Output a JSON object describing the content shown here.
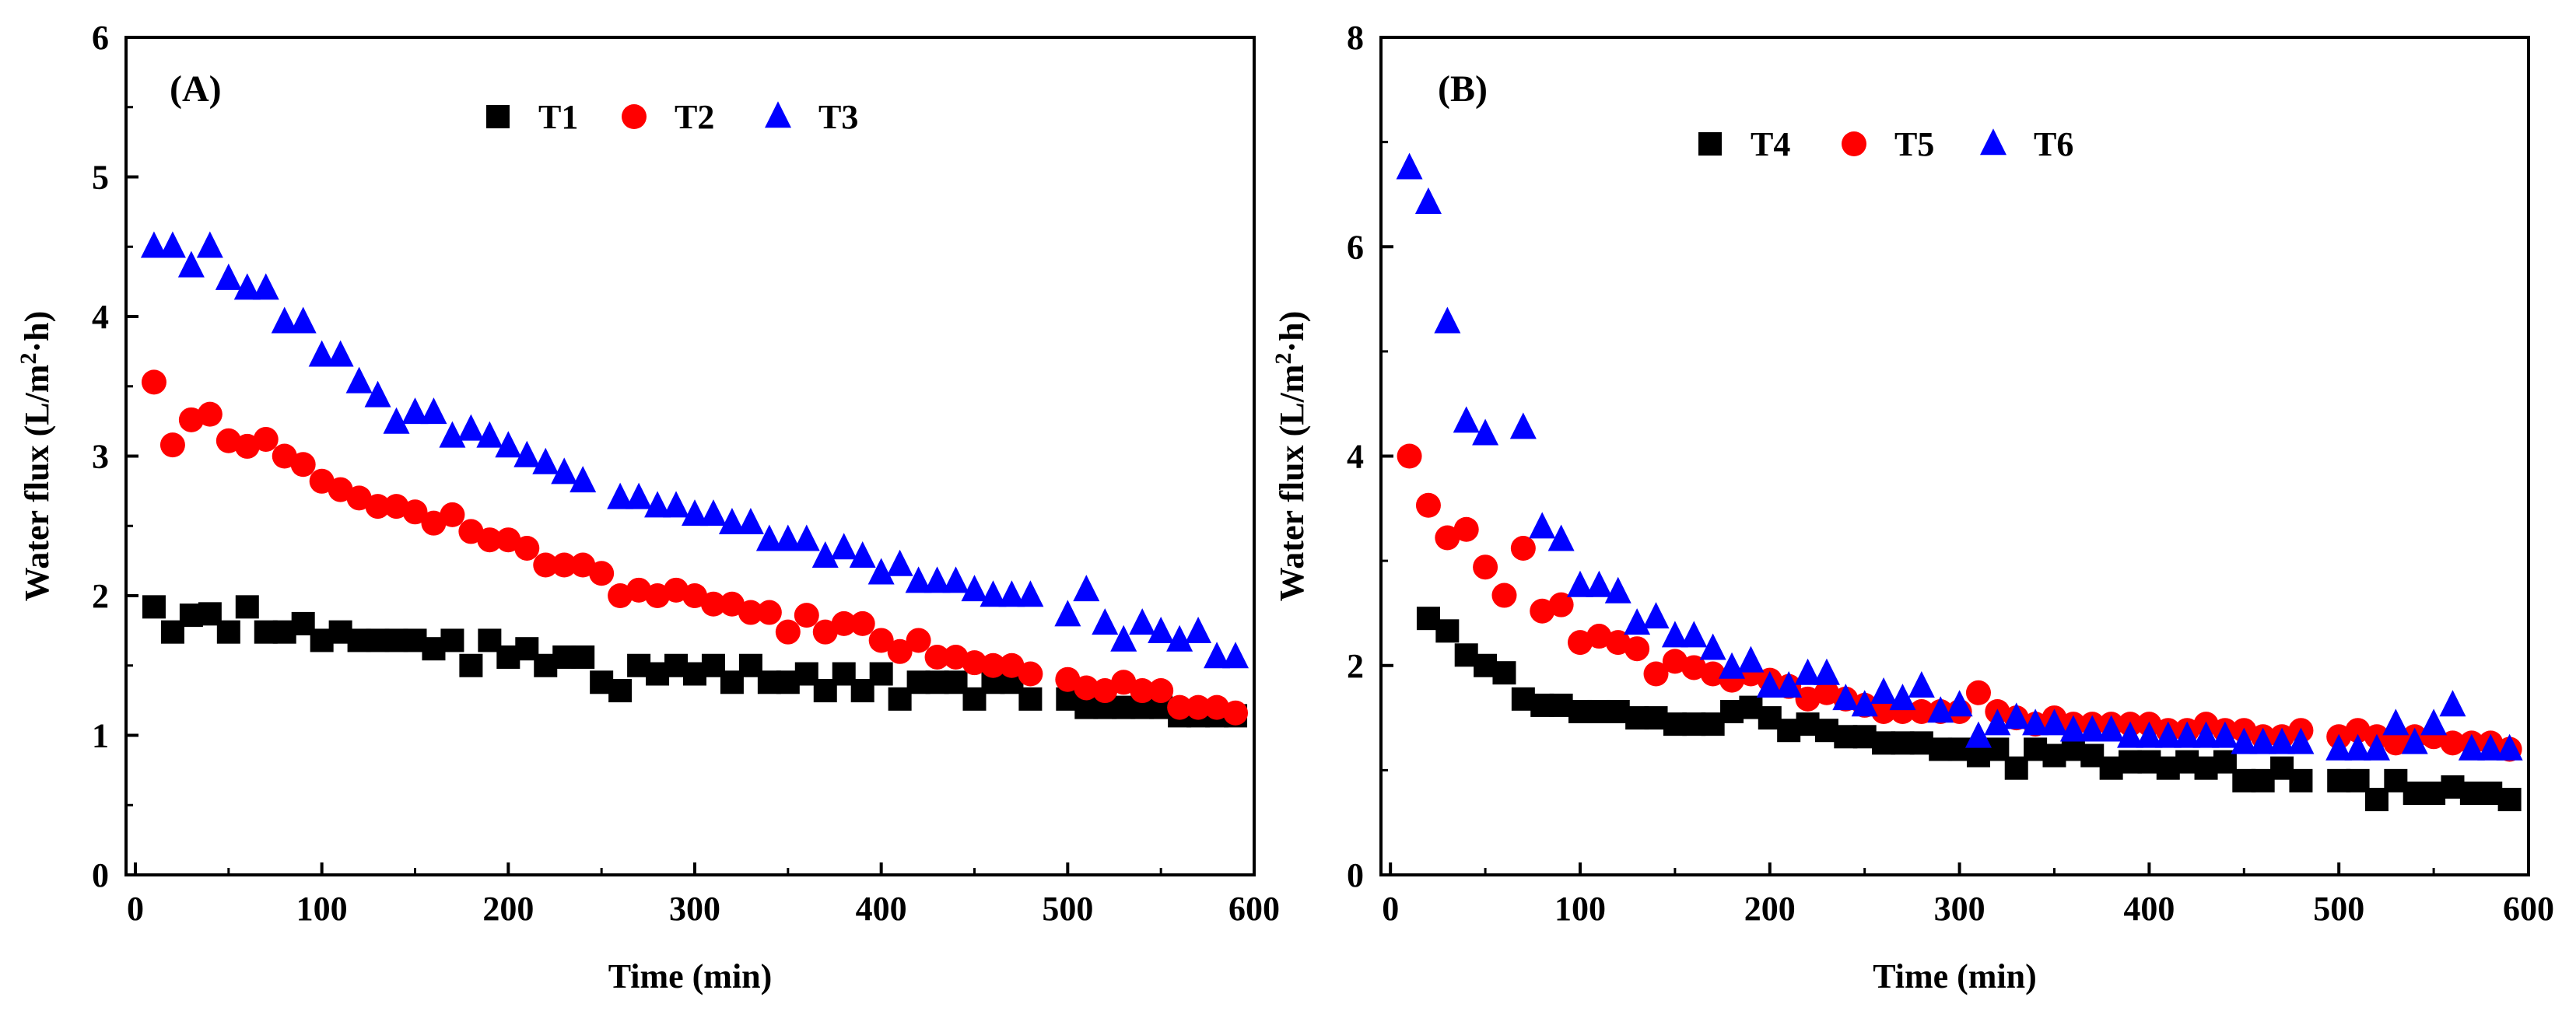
{
  "chart_data": [
    {
      "type": "scatter",
      "panel_label": "(A)",
      "xlabel": "Time (min)",
      "ylabel": "Water flux (L/m²·h)",
      "ylabel_parts": {
        "base": "Water flux (L/m",
        "sup": "2",
        "tail": "·h)"
      },
      "xlim": [
        -5,
        600
      ],
      "ylim": [
        0,
        6
      ],
      "xticks": [
        0,
        100,
        200,
        300,
        400,
        500,
        600
      ],
      "yticks": [
        0,
        1,
        2,
        3,
        4,
        5,
        6
      ],
      "legend_position": "top",
      "grid": false,
      "series": [
        {
          "name": "T1",
          "marker": "square",
          "color": "#000000",
          "x": [
            10,
            20,
            30,
            40,
            50,
            60,
            70,
            80,
            90,
            100,
            110,
            120,
            130,
            140,
            150,
            160,
            170,
            180,
            190,
            200,
            210,
            220,
            230,
            240,
            250,
            260,
            270,
            280,
            290,
            300,
            310,
            320,
            330,
            340,
            350,
            360,
            370,
            380,
            390,
            400,
            410,
            420,
            430,
            440,
            450,
            460,
            470,
            480,
            500,
            510,
            520,
            530,
            540,
            550,
            560,
            570,
            580,
            590
          ],
          "y": [
            1.92,
            1.74,
            1.86,
            1.87,
            1.74,
            1.92,
            1.74,
            1.74,
            1.8,
            1.68,
            1.74,
            1.68,
            1.68,
            1.68,
            1.68,
            1.62,
            1.68,
            1.5,
            1.68,
            1.56,
            1.62,
            1.5,
            1.56,
            1.56,
            1.38,
            1.32,
            1.5,
            1.44,
            1.5,
            1.44,
            1.5,
            1.38,
            1.5,
            1.38,
            1.38,
            1.44,
            1.32,
            1.44,
            1.32,
            1.44,
            1.26,
            1.38,
            1.38,
            1.38,
            1.26,
            1.38,
            1.38,
            1.26,
            1.26,
            1.2,
            1.2,
            1.2,
            1.2,
            1.2,
            1.14,
            1.14,
            1.14,
            1.14
          ]
        },
        {
          "name": "T2",
          "marker": "circle",
          "color": "#ff0000",
          "x": [
            10,
            20,
            30,
            40,
            50,
            60,
            70,
            80,
            90,
            100,
            110,
            120,
            130,
            140,
            150,
            160,
            170,
            180,
            190,
            200,
            210,
            220,
            230,
            240,
            250,
            260,
            270,
            280,
            290,
            300,
            310,
            320,
            330,
            340,
            350,
            360,
            370,
            380,
            390,
            400,
            410,
            420,
            430,
            440,
            450,
            460,
            470,
            480,
            500,
            510,
            520,
            530,
            540,
            550,
            560,
            570,
            580,
            590
          ],
          "y": [
            3.53,
            3.08,
            3.26,
            3.3,
            3.11,
            3.07,
            3.12,
            3.0,
            2.94,
            2.82,
            2.76,
            2.7,
            2.64,
            2.64,
            2.6,
            2.52,
            2.58,
            2.46,
            2.4,
            2.4,
            2.34,
            2.22,
            2.22,
            2.22,
            2.16,
            2.0,
            2.04,
            2.0,
            2.04,
            2.0,
            1.94,
            1.94,
            1.88,
            1.88,
            1.74,
            1.86,
            1.74,
            1.8,
            1.8,
            1.68,
            1.6,
            1.68,
            1.56,
            1.56,
            1.52,
            1.5,
            1.5,
            1.44,
            1.4,
            1.34,
            1.32,
            1.38,
            1.32,
            1.32,
            1.2,
            1.2,
            1.2,
            1.16
          ]
        },
        {
          "name": "T3",
          "marker": "triangle",
          "color": "#0000ff",
          "x": [
            10,
            20,
            30,
            40,
            50,
            60,
            70,
            80,
            90,
            100,
            110,
            120,
            130,
            140,
            150,
            160,
            170,
            180,
            190,
            200,
            210,
            220,
            230,
            240,
            260,
            270,
            280,
            290,
            300,
            310,
            320,
            330,
            340,
            350,
            360,
            370,
            380,
            390,
            400,
            410,
            420,
            430,
            440,
            450,
            460,
            470,
            480,
            500,
            510,
            520,
            530,
            540,
            550,
            560,
            570,
            580,
            590
          ],
          "y": [
            4.5,
            4.5,
            4.36,
            4.5,
            4.27,
            4.2,
            4.2,
            3.96,
            3.96,
            3.72,
            3.72,
            3.53,
            3.43,
            3.24,
            3.31,
            3.31,
            3.14,
            3.19,
            3.14,
            3.07,
            3.0,
            2.95,
            2.88,
            2.82,
            2.7,
            2.7,
            2.64,
            2.64,
            2.58,
            2.58,
            2.52,
            2.52,
            2.4,
            2.4,
            2.4,
            2.28,
            2.34,
            2.28,
            2.16,
            2.22,
            2.1,
            2.1,
            2.1,
            2.04,
            2.0,
            2.0,
            2.0,
            1.86,
            2.04,
            1.8,
            1.68,
            1.8,
            1.74,
            1.68,
            1.74,
            1.56,
            1.56
          ]
        }
      ]
    },
    {
      "type": "scatter",
      "panel_label": "(B)",
      "xlabel": "Time (min)",
      "ylabel": "Water flux (L/m²·h)",
      "ylabel_parts": {
        "base": "Water flux (L/m",
        "sup": "2",
        "tail": "·h)"
      },
      "xlim": [
        -5,
        600
      ],
      "ylim": [
        0,
        8
      ],
      "xticks": [
        0,
        100,
        200,
        300,
        400,
        500,
        600
      ],
      "yticks": [
        0,
        2,
        4,
        6,
        8
      ],
      "legend_position": "top",
      "grid": false,
      "series": [
        {
          "name": "T4",
          "marker": "square",
          "color": "#000000",
          "x": [
            20,
            30,
            40,
            50,
            60,
            70,
            80,
            90,
            100,
            110,
            120,
            130,
            140,
            150,
            160,
            170,
            180,
            190,
            200,
            210,
            220,
            230,
            240,
            250,
            260,
            270,
            280,
            290,
            300,
            310,
            320,
            330,
            340,
            350,
            360,
            370,
            380,
            390,
            400,
            410,
            420,
            430,
            440,
            450,
            460,
            470,
            480,
            500,
            510,
            520,
            530,
            540,
            550,
            560,
            570,
            580,
            590
          ],
          "y": [
            2.45,
            2.33,
            2.1,
            2.0,
            1.93,
            1.68,
            1.62,
            1.62,
            1.56,
            1.56,
            1.56,
            1.5,
            1.5,
            1.44,
            1.44,
            1.44,
            1.56,
            1.6,
            1.5,
            1.38,
            1.44,
            1.38,
            1.32,
            1.32,
            1.26,
            1.26,
            1.26,
            1.2,
            1.2,
            1.14,
            1.2,
            1.02,
            1.2,
            1.14,
            1.2,
            1.14,
            1.02,
            1.08,
            1.08,
            1.02,
            1.08,
            1.02,
            1.08,
            0.9,
            0.9,
            1.02,
            0.9,
            0.9,
            0.9,
            0.72,
            0.9,
            0.78,
            0.78,
            0.84,
            0.78,
            0.78,
            0.72
          ]
        },
        {
          "name": "T5",
          "marker": "circle",
          "color": "#ff0000",
          "x": [
            10,
            20,
            30,
            40,
            50,
            60,
            70,
            80,
            90,
            100,
            110,
            120,
            130,
            140,
            150,
            160,
            170,
            180,
            190,
            200,
            210,
            220,
            230,
            240,
            250,
            260,
            270,
            280,
            290,
            300,
            310,
            320,
            330,
            340,
            350,
            360,
            370,
            380,
            390,
            400,
            410,
            420,
            430,
            440,
            450,
            460,
            470,
            480,
            500,
            510,
            520,
            530,
            540,
            550,
            560,
            570,
            580,
            590
          ],
          "y": [
            4.0,
            3.53,
            3.22,
            3.3,
            2.94,
            2.67,
            3.12,
            2.52,
            2.58,
            2.22,
            2.28,
            2.22,
            2.16,
            1.92,
            2.04,
            1.98,
            1.92,
            1.86,
            1.92,
            1.86,
            1.8,
            1.68,
            1.74,
            1.68,
            1.62,
            1.56,
            1.56,
            1.56,
            1.56,
            1.56,
            1.74,
            1.56,
            1.5,
            1.44,
            1.5,
            1.44,
            1.44,
            1.44,
            1.44,
            1.44,
            1.38,
            1.38,
            1.44,
            1.38,
            1.38,
            1.32,
            1.32,
            1.38,
            1.32,
            1.38,
            1.32,
            1.26,
            1.32,
            1.32,
            1.26,
            1.26,
            1.26,
            1.2
          ]
        },
        {
          "name": "T6",
          "marker": "triangle",
          "color": "#0000ff",
          "x": [
            10,
            20,
            30,
            40,
            50,
            70,
            80,
            90,
            100,
            110,
            120,
            130,
            140,
            150,
            160,
            170,
            180,
            190,
            200,
            210,
            220,
            230,
            240,
            250,
            260,
            270,
            280,
            290,
            300,
            310,
            320,
            330,
            340,
            350,
            360,
            370,
            380,
            390,
            400,
            410,
            420,
            430,
            440,
            450,
            460,
            470,
            480,
            500,
            510,
            520,
            530,
            540,
            550,
            560,
            570,
            580,
            590
          ],
          "y": [
            6.75,
            6.42,
            5.28,
            4.33,
            4.21,
            4.27,
            3.32,
            3.2,
            2.76,
            2.76,
            2.7,
            2.4,
            2.46,
            2.28,
            2.28,
            2.16,
            1.98,
            2.04,
            1.8,
            1.8,
            1.92,
            1.92,
            1.68,
            1.62,
            1.74,
            1.68,
            1.8,
            1.56,
            1.62,
            1.32,
            1.44,
            1.5,
            1.44,
            1.44,
            1.38,
            1.38,
            1.38,
            1.32,
            1.32,
            1.32,
            1.32,
            1.32,
            1.32,
            1.26,
            1.26,
            1.26,
            1.26,
            1.2,
            1.2,
            1.2,
            1.44,
            1.26,
            1.44,
            1.62,
            1.2,
            1.2,
            1.2
          ]
        }
      ]
    }
  ]
}
